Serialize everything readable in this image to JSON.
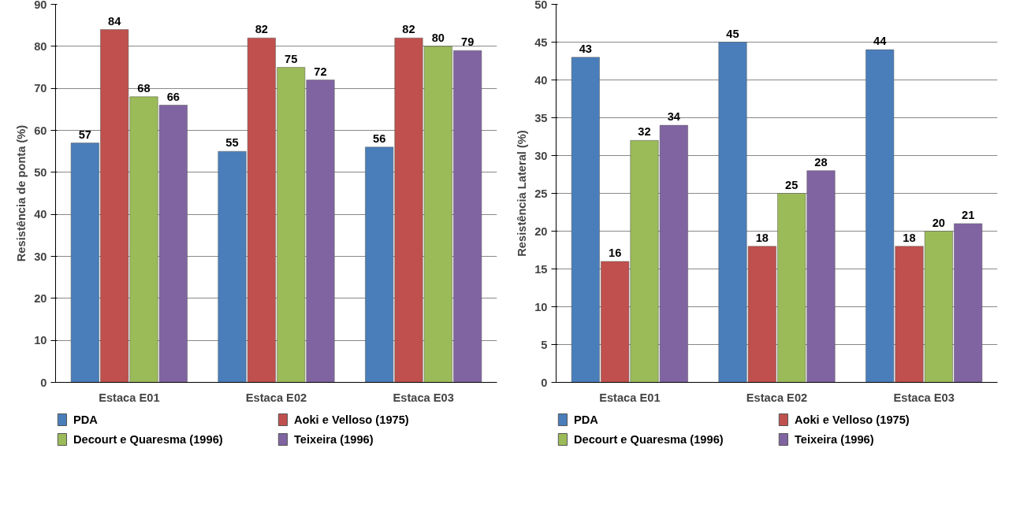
{
  "chart_data": [
    {
      "type": "bar",
      "ylabel": "Resistência de ponta (%)",
      "categories": [
        "Estaca E01",
        "Estaca E02",
        "Estaca E03"
      ],
      "series": [
        {
          "name": "PDA",
          "color": "#4a7ebb",
          "values": [
            57,
            55,
            56
          ]
        },
        {
          "name": "Aoki e Velloso (1975)",
          "color": "#c0504d",
          "values": [
            84,
            82,
            82
          ]
        },
        {
          "name": "Decourt e Quaresma (1996)",
          "color": "#9bbb59",
          "values": [
            68,
            75,
            80
          ]
        },
        {
          "name": "Teixeira (1996)",
          "color": "#8064a2",
          "values": [
            66,
            72,
            79
          ]
        }
      ],
      "ylim": [
        0,
        90
      ],
      "yticks": [
        0,
        10,
        20,
        30,
        40,
        50,
        60,
        70,
        80,
        90
      ],
      "grid": "y",
      "legend": "bottom",
      "data_labels": true
    },
    {
      "type": "bar",
      "ylabel": "Resistência Lateral (%)",
      "categories": [
        "Estaca E01",
        "Estaca E02",
        "Estaca E03"
      ],
      "series": [
        {
          "name": "PDA",
          "color": "#4a7ebb",
          "values": [
            43,
            45,
            44
          ]
        },
        {
          "name": "Aoki e Velloso (1975)",
          "color": "#c0504d",
          "values": [
            16,
            18,
            18
          ]
        },
        {
          "name": "Decourt e Quaresma (1996)",
          "color": "#9bbb59",
          "values": [
            32,
            25,
            20
          ]
        },
        {
          "name": "Teixeira (1996)",
          "color": "#8064a2",
          "values": [
            34,
            28,
            21
          ]
        }
      ],
      "ylim": [
        0,
        50
      ],
      "yticks": [
        0,
        5,
        10,
        15,
        20,
        25,
        30,
        35,
        40,
        45,
        50
      ],
      "grid": "y",
      "legend": "bottom",
      "data_labels": true
    }
  ]
}
